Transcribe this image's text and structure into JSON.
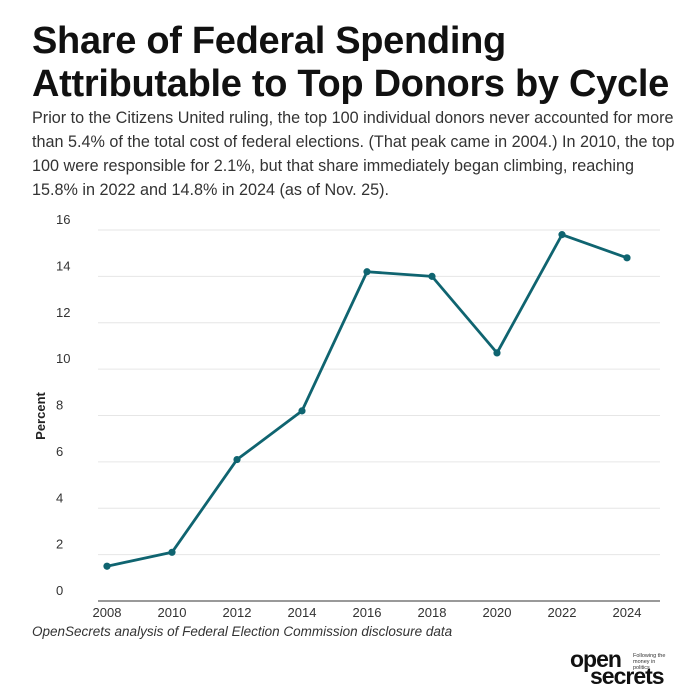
{
  "title": "Share of Federal Spending Attributable to Top Donors by Cycle",
  "subtitle": "Prior to the Citizens United ruling, the top 100 individual donors never accounted for more than 5.4% of the total cost of federal elections. (That peak came in 2004.) In 2010, the top 100 were responsible for 2.1%, but that share immediately began climbing, reaching 15.8% in 2022 and 14.8% in 2024 (as of Nov. 25).",
  "caption": "OpenSecrets analysis of Federal Election Commission disclosure data",
  "logo": {
    "open": "open",
    "secrets": "secrets",
    "tagline": "Following the money in politics"
  },
  "colors": {
    "line": "#0f6470",
    "grid": "#e6e6e6",
    "axis": "#333333"
  },
  "chart_data": {
    "type": "line",
    "x": [
      "2008",
      "2010",
      "2012",
      "2014",
      "2016",
      "2018",
      "2020",
      "2022",
      "2024"
    ],
    "series": [
      {
        "values": [
          1.5,
          2.1,
          6.1,
          8.2,
          14.2,
          14.0,
          10.7,
          15.8,
          14.8
        ]
      }
    ],
    "ylabel": "Percent",
    "xlabel": "",
    "ylim": [
      0,
      16
    ],
    "yticks": [
      0,
      2,
      4,
      6,
      8,
      10,
      12,
      14,
      16
    ],
    "grid": true,
    "legend": "none"
  }
}
